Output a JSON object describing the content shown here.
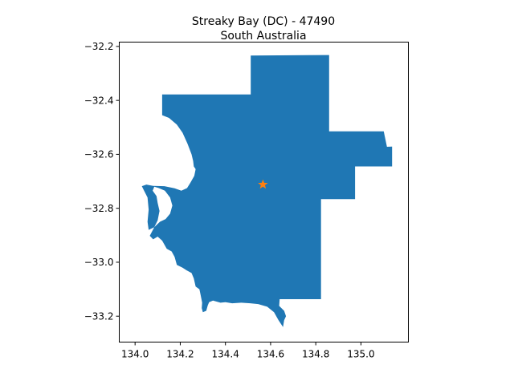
{
  "title_line1": "Streaky Bay (DC) - 47490",
  "title_line2": "South Australia",
  "colors": {
    "region": "#1f77b4",
    "marker": "#ff7f0e",
    "axes": "#000000",
    "background": "#ffffff"
  },
  "map": {
    "xlim": [
      133.93,
      135.21
    ],
    "ylim": [
      -33.296,
      -32.184
    ],
    "x_ticks": [
      134.0,
      134.2,
      134.4,
      134.6,
      134.8,
      135.0
    ],
    "x_tick_labels": [
      "134.0",
      "134.2",
      "134.4",
      "134.6",
      "134.8",
      "135.0"
    ],
    "y_ticks": [
      -32.2,
      -32.4,
      -32.6,
      -32.8,
      -33.0,
      -33.2
    ],
    "y_tick_labels": [
      "−32.2",
      "−32.4",
      "−32.6",
      "−32.8",
      "−33.0",
      "−33.2"
    ],
    "centroid_marker": {
      "lon": 134.566,
      "lat": -32.712,
      "symbol": "star"
    },
    "region_outline": [
      [
        134.512,
        -32.234
      ],
      [
        134.859,
        -32.232
      ],
      [
        134.859,
        -32.515
      ],
      [
        135.101,
        -32.515
      ],
      [
        135.115,
        -32.572
      ],
      [
        135.138,
        -32.571
      ],
      [
        135.138,
        -32.645
      ],
      [
        134.974,
        -32.645
      ],
      [
        134.974,
        -32.766
      ],
      [
        134.823,
        -32.766
      ],
      [
        134.823,
        -33.137
      ],
      [
        134.64,
        -33.137
      ],
      [
        134.638,
        -33.162
      ],
      [
        134.66,
        -33.18
      ],
      [
        134.668,
        -33.2
      ],
      [
        134.66,
        -33.215
      ],
      [
        134.655,
        -33.24
      ],
      [
        134.635,
        -33.215
      ],
      [
        134.615,
        -33.185
      ],
      [
        134.585,
        -33.165
      ],
      [
        134.545,
        -33.155
      ],
      [
        134.51,
        -33.152
      ],
      [
        134.47,
        -33.15
      ],
      [
        134.43,
        -33.152
      ],
      [
        134.4,
        -33.148
      ],
      [
        134.378,
        -33.15
      ],
      [
        134.345,
        -33.142
      ],
      [
        134.328,
        -33.148
      ],
      [
        134.322,
        -33.16
      ],
      [
        134.315,
        -33.18
      ],
      [
        134.3,
        -33.185
      ],
      [
        134.295,
        -33.17
      ],
      [
        134.297,
        -33.15
      ],
      [
        134.29,
        -33.12
      ],
      [
        134.285,
        -33.1
      ],
      [
        134.268,
        -33.09
      ],
      [
        134.26,
        -33.06
      ],
      [
        134.25,
        -33.04
      ],
      [
        134.228,
        -33.03
      ],
      [
        134.21,
        -33.02
      ],
      [
        134.185,
        -33.01
      ],
      [
        134.175,
        -32.98
      ],
      [
        134.162,
        -32.96
      ],
      [
        134.14,
        -32.95
      ],
      [
        134.12,
        -32.92
      ],
      [
        134.1,
        -32.905
      ],
      [
        134.08,
        -32.915
      ],
      [
        134.065,
        -32.902
      ],
      [
        134.085,
        -32.87
      ],
      [
        134.11,
        -32.85
      ],
      [
        134.135,
        -32.84
      ],
      [
        134.155,
        -32.82
      ],
      [
        134.165,
        -32.79
      ],
      [
        134.155,
        -32.76
      ],
      [
        134.132,
        -32.735
      ],
      [
        134.105,
        -32.725
      ],
      [
        134.085,
        -32.72
      ],
      [
        134.078,
        -32.735
      ],
      [
        134.095,
        -32.755
      ],
      [
        134.1,
        -32.78
      ],
      [
        134.108,
        -32.81
      ],
      [
        134.1,
        -32.845
      ],
      [
        134.085,
        -32.87
      ],
      [
        134.06,
        -32.88
      ],
      [
        134.055,
        -32.85
      ],
      [
        134.06,
        -32.805
      ],
      [
        134.055,
        -32.76
      ],
      [
        134.04,
        -32.735
      ],
      [
        134.03,
        -32.718
      ],
      [
        134.05,
        -32.712
      ],
      [
        134.08,
        -32.717
      ],
      [
        134.13,
        -32.718
      ],
      [
        134.175,
        -32.726
      ],
      [
        134.205,
        -32.735
      ],
      [
        134.23,
        -32.725
      ],
      [
        134.245,
        -32.705
      ],
      [
        134.262,
        -32.68
      ],
      [
        134.268,
        -32.655
      ],
      [
        134.26,
        -32.645
      ],
      [
        134.257,
        -32.625
      ],
      [
        134.25,
        -32.6
      ],
      [
        134.232,
        -32.56
      ],
      [
        134.21,
        -32.52
      ],
      [
        134.185,
        -32.49
      ],
      [
        134.15,
        -32.465
      ],
      [
        134.12,
        -32.455
      ],
      [
        134.12,
        -32.378
      ],
      [
        134.512,
        -32.378
      ]
    ]
  }
}
